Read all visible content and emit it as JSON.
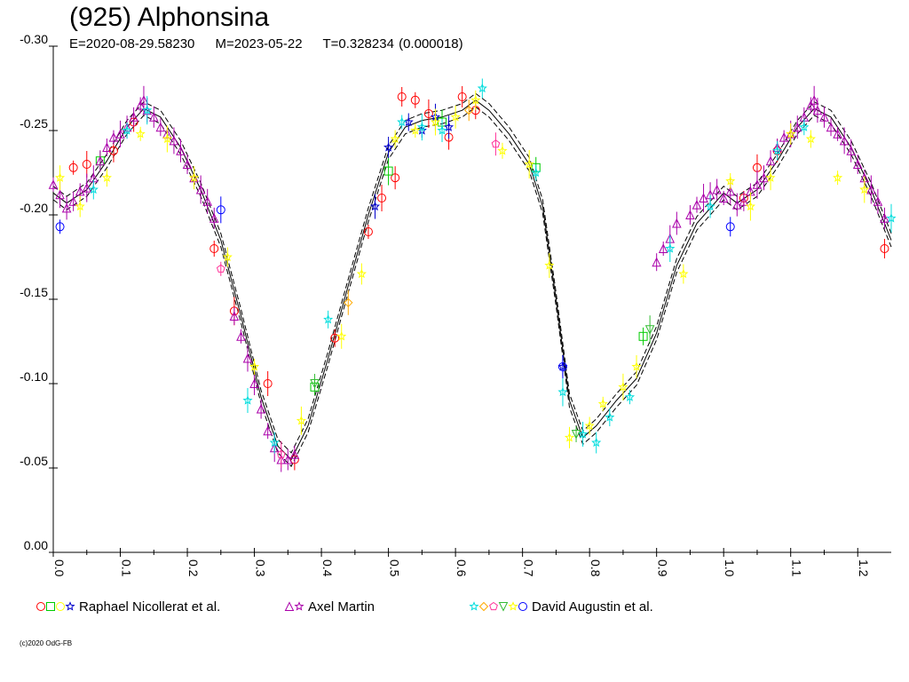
{
  "header": {
    "title": "(925) Alphonsina",
    "epoch": "E=2020-08-29.58230",
    "mid_date": "M=2023-05-22",
    "period": "T=0.328234 (0.000018)"
  },
  "footer": {
    "copyright": "(c)2020 OdG-FB"
  },
  "chart_data": {
    "type": "scatter",
    "title": "(925) Alphonsina",
    "xlabel": "",
    "ylabel": "",
    "xlim": [
      0.0,
      1.25
    ],
    "ylim": [
      0.0,
      -0.3
    ],
    "y_inverted": true,
    "grid": false,
    "x_ticks": [
      "0.0",
      "0.1",
      "0.2",
      "0.3",
      "0.4",
      "0.5",
      "0.6",
      "0.7",
      "0.8",
      "0.9",
      "1.0",
      "1.1",
      "1.2"
    ],
    "y_ticks": [
      "0.00",
      "-0.05",
      "-0.10",
      "-0.15",
      "-0.20",
      "-0.25",
      "-0.30"
    ],
    "x_tick_values": [
      0.0,
      0.1,
      0.2,
      0.3,
      0.4,
      0.5,
      0.6,
      0.7,
      0.8,
      0.9,
      1.0,
      1.1,
      1.2
    ],
    "y_tick_values": [
      0.0,
      -0.05,
      -0.1,
      -0.15,
      -0.2,
      -0.25,
      -0.3
    ],
    "legend_position": "bottom",
    "fit_curve": {
      "x": [
        0.0,
        0.02,
        0.05,
        0.08,
        0.11,
        0.135,
        0.16,
        0.19,
        0.22,
        0.25,
        0.28,
        0.31,
        0.335,
        0.355,
        0.38,
        0.41,
        0.44,
        0.47,
        0.5,
        0.525,
        0.55,
        0.58,
        0.61,
        0.63,
        0.65,
        0.68,
        0.71,
        0.73,
        0.75,
        0.77,
        0.79,
        0.81,
        0.84,
        0.87,
        0.9,
        0.93,
        0.96,
        1.0,
        1.02,
        1.05,
        1.08,
        1.11,
        1.135,
        1.16,
        1.19,
        1.22,
        1.25
      ],
      "y": [
        -0.213,
        -0.207,
        -0.215,
        -0.232,
        -0.252,
        -0.263,
        -0.258,
        -0.24,
        -0.215,
        -0.185,
        -0.14,
        -0.092,
        -0.063,
        -0.055,
        -0.075,
        -0.115,
        -0.158,
        -0.2,
        -0.237,
        -0.252,
        -0.256,
        -0.258,
        -0.262,
        -0.268,
        -0.262,
        -0.248,
        -0.23,
        -0.205,
        -0.15,
        -0.09,
        -0.068,
        -0.075,
        -0.09,
        -0.103,
        -0.13,
        -0.17,
        -0.195,
        -0.213,
        -0.207,
        -0.215,
        -0.232,
        -0.252,
        -0.263,
        -0.258,
        -0.24,
        -0.215,
        -0.185
      ],
      "band": 0.004
    },
    "series": [
      {
        "name": "Raphael Nicollerat et al.",
        "color": "#ff0000",
        "marker": "circle",
        "x": [
          0.03,
          0.05,
          0.09,
          0.12,
          0.24,
          0.27,
          0.32,
          0.36,
          0.42,
          0.47,
          0.49,
          0.51,
          0.52,
          0.54,
          0.56,
          0.59,
          0.61,
          0.63,
          1.03,
          1.05,
          1.08,
          1.24
        ],
        "y": [
          -0.228,
          -0.23,
          -0.238,
          -0.255,
          -0.18,
          -0.143,
          -0.1,
          -0.055,
          -0.127,
          -0.19,
          -0.21,
          -0.222,
          -0.27,
          -0.268,
          -0.26,
          -0.246,
          -0.27,
          -0.262,
          -0.21,
          -0.228,
          -0.238,
          -0.18
        ]
      },
      {
        "name": "Raphael Nicollerat et al.",
        "color": "#00cc00",
        "marker": "square",
        "x": [
          0.07,
          0.39,
          0.5,
          0.58,
          0.72,
          0.88
        ],
        "y": [
          -0.232,
          -0.098,
          -0.226,
          -0.255,
          -0.228,
          -0.128
        ]
      },
      {
        "name": "Raphael Nicollerat et al.",
        "color": "#0000cc",
        "marker": "star",
        "x": [
          0.48,
          0.5,
          0.53,
          0.55,
          0.57,
          0.59,
          0.76
        ],
        "y": [
          -0.205,
          -0.24,
          -0.255,
          -0.25,
          -0.258,
          -0.252,
          -0.11
        ]
      },
      {
        "name": "Axel Martin",
        "color": "#aa00aa",
        "marker": "triangle",
        "x": [
          0.0,
          0.01,
          0.02,
          0.03,
          0.04,
          0.05,
          0.06,
          0.07,
          0.08,
          0.09,
          0.1,
          0.11,
          0.12,
          0.13,
          0.135,
          0.14,
          0.15,
          0.16,
          0.17,
          0.18,
          0.19,
          0.2,
          0.21,
          0.22,
          0.23,
          0.24,
          0.27,
          0.28,
          0.29,
          0.3,
          0.31,
          0.32,
          0.33,
          0.34,
          0.35,
          0.36,
          1.0,
          1.01,
          1.02,
          1.03,
          1.04,
          1.05,
          1.06,
          1.07,
          1.08,
          1.09,
          1.1,
          1.11,
          1.12,
          1.13,
          1.135,
          1.14,
          1.15,
          1.16,
          1.17,
          1.18,
          1.19,
          1.2,
          1.21,
          1.22,
          1.23,
          1.24,
          0.9,
          0.91,
          0.92,
          0.93,
          0.95,
          0.96,
          0.97,
          0.98,
          0.99
        ],
        "y": [
          -0.218,
          -0.212,
          -0.204,
          -0.208,
          -0.214,
          -0.216,
          -0.222,
          -0.232,
          -0.24,
          -0.246,
          -0.248,
          -0.252,
          -0.258,
          -0.265,
          -0.268,
          -0.262,
          -0.258,
          -0.252,
          -0.248,
          -0.244,
          -0.238,
          -0.23,
          -0.222,
          -0.215,
          -0.208,
          -0.198,
          -0.14,
          -0.128,
          -0.115,
          -0.1,
          -0.085,
          -0.072,
          -0.062,
          -0.055,
          -0.055,
          -0.058,
          -0.21,
          -0.214,
          -0.206,
          -0.208,
          -0.214,
          -0.218,
          -0.222,
          -0.232,
          -0.24,
          -0.246,
          -0.248,
          -0.252,
          -0.258,
          -0.265,
          -0.268,
          -0.262,
          -0.258,
          -0.252,
          -0.248,
          -0.244,
          -0.238,
          -0.23,
          -0.222,
          -0.215,
          -0.208,
          -0.198,
          -0.172,
          -0.18,
          -0.186,
          -0.195,
          -0.2,
          -0.206,
          -0.21,
          -0.212,
          -0.215
        ]
      },
      {
        "name": "David Augustin et al.",
        "color": "#00dddd",
        "marker": "star",
        "x": [
          0.06,
          0.11,
          0.14,
          0.29,
          0.33,
          0.41,
          0.52,
          0.55,
          0.58,
          0.64,
          0.72,
          0.76,
          0.79,
          0.81,
          0.83,
          0.86,
          0.92,
          0.98,
          1.08,
          1.12,
          1.25
        ],
        "y": [
          -0.215,
          -0.25,
          -0.262,
          -0.09,
          -0.065,
          -0.138,
          -0.255,
          -0.252,
          -0.25,
          -0.275,
          -0.225,
          -0.095,
          -0.07,
          -0.065,
          -0.08,
          -0.092,
          -0.18,
          -0.205,
          -0.238,
          -0.252,
          -0.198
        ]
      },
      {
        "name": "David Augustin et al.",
        "color": "#ffaa00",
        "marker": "diamond",
        "x": [
          0.44,
          0.62
        ],
        "y": [
          -0.148,
          -0.262
        ]
      },
      {
        "name": "David Augustin et al.",
        "color": "#ff3399",
        "marker": "pentagon",
        "x": [
          0.25,
          0.34,
          0.66
        ],
        "y": [
          -0.168,
          -0.058,
          -0.242
        ]
      },
      {
        "name": "David Augustin et al.",
        "color": "#33bb33",
        "marker": "triangle-down",
        "x": [
          0.39,
          0.78,
          0.89
        ],
        "y": [
          -0.1,
          -0.07,
          -0.132
        ]
      },
      {
        "name": "David Augustin et al.",
        "color": "#ffff00",
        "marker": "star",
        "x": [
          0.01,
          0.04,
          0.08,
          0.13,
          0.17,
          0.21,
          0.26,
          0.3,
          0.37,
          0.43,
          0.46,
          0.51,
          0.54,
          0.57,
          0.6,
          0.63,
          0.67,
          0.71,
          0.74,
          0.77,
          0.8,
          0.82,
          0.85,
          0.87,
          0.94,
          1.01,
          1.04,
          1.07,
          1.1,
          1.13,
          1.17,
          1.21
        ],
        "y": [
          -0.222,
          -0.205,
          -0.222,
          -0.248,
          -0.245,
          -0.222,
          -0.175,
          -0.11,
          -0.078,
          -0.128,
          -0.165,
          -0.245,
          -0.25,
          -0.255,
          -0.258,
          -0.268,
          -0.238,
          -0.23,
          -0.17,
          -0.068,
          -0.075,
          -0.088,
          -0.098,
          -0.11,
          -0.165,
          -0.22,
          -0.205,
          -0.222,
          -0.248,
          -0.245,
          -0.222,
          -0.215
        ]
      },
      {
        "name": "David Augustin et al.",
        "color": "#0000ff",
        "marker": "circle",
        "x": [
          0.01,
          0.25,
          0.76,
          1.01
        ],
        "y": [
          -0.193,
          -0.203,
          -0.11,
          -0.193
        ]
      }
    ],
    "legend": [
      {
        "label": "Raphael Nicollerat et al.",
        "markers": [
          {
            "shape": "circle",
            "color": "#ff0000"
          },
          {
            "shape": "square",
            "color": "#00cc00"
          },
          {
            "shape": "circle",
            "color": "#ffff00"
          },
          {
            "shape": "star",
            "color": "#0000cc"
          }
        ]
      },
      {
        "label": "Axel Martin",
        "markers": [
          {
            "shape": "triangle",
            "color": "#aa00aa"
          },
          {
            "shape": "star",
            "color": "#aa00aa"
          }
        ]
      },
      {
        "label": "David Augustin et al.",
        "markers": [
          {
            "shape": "star",
            "color": "#00dddd"
          },
          {
            "shape": "diamond",
            "color": "#ffaa00"
          },
          {
            "shape": "pentagon",
            "color": "#ff3399"
          },
          {
            "shape": "triangle-down",
            "color": "#33bb33"
          },
          {
            "shape": "star",
            "color": "#ffff00"
          },
          {
            "shape": "circle",
            "color": "#0000ff"
          }
        ]
      }
    ]
  }
}
